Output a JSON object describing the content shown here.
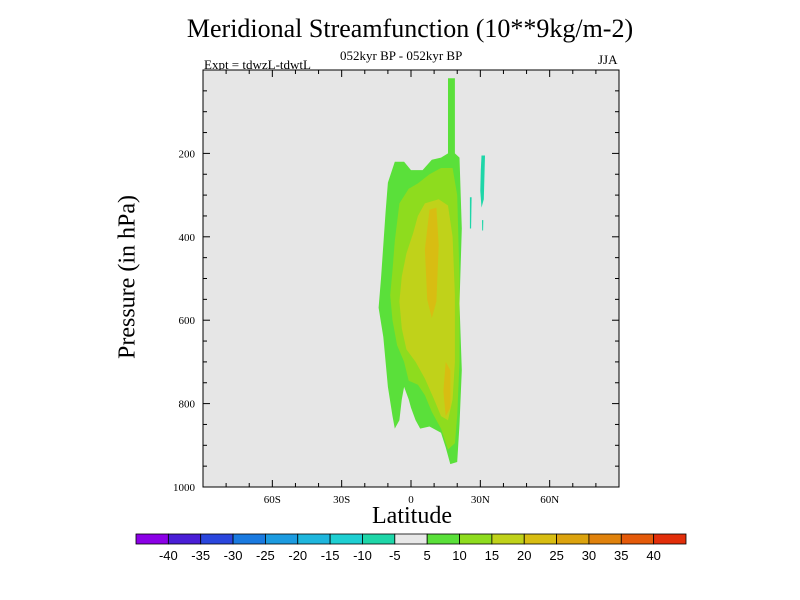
{
  "chart_data": {
    "type": "contour",
    "title": "Meridional Streamfunction (10**9kg/m-2)",
    "subtitle": "052kyr BP - 052kyr BP",
    "experiment": "Expt = tdwzL-tdwtL",
    "season": "JJA",
    "xlabel": "Latitude",
    "ylabel": "Pressure (in hPa)",
    "xlim": [
      -90,
      90
    ],
    "ylim": [
      1000,
      0
    ],
    "x_ticks": [
      {
        "value": -60,
        "label": "60S"
      },
      {
        "value": -30,
        "label": "30S"
      },
      {
        "value": 0,
        "label": "0"
      },
      {
        "value": 30,
        "label": "30N"
      },
      {
        "value": 60,
        "label": "60N"
      }
    ],
    "y_ticks": [
      {
        "value": 200,
        "label": "200"
      },
      {
        "value": 400,
        "label": "400"
      },
      {
        "value": 600,
        "label": "600"
      },
      {
        "value": 800,
        "label": "800"
      },
      {
        "value": 1000,
        "label": "1000"
      }
    ],
    "colorbar": {
      "levels": [
        "-40",
        "-35",
        "-30",
        "-25",
        "-20",
        "-15",
        "-10",
        "-5",
        "5",
        "10",
        "15",
        "20",
        "25",
        "30",
        "35",
        "40"
      ],
      "colors": [
        "#8b00e6",
        "#4a1ed6",
        "#2a46dd",
        "#1a7ae0",
        "#1c9be0",
        "#1eb6dd",
        "#1ecfd2",
        "#1ed6a8",
        "#e8e8e8",
        "#5ae03a",
        "#8edc1e",
        "#c0d21a",
        "#d8bd12",
        "#dca30e",
        "#e0820c",
        "#e45a0a",
        "#e22e0a"
      ]
    },
    "regions": [
      {
        "level": "5 to 10",
        "color": "#5ae03a",
        "polygon": [
          [
            16,
            20
          ],
          [
            19,
            20
          ],
          [
            19,
            200
          ],
          [
            21,
            210
          ],
          [
            22,
            380
          ],
          [
            21,
            560
          ],
          [
            22,
            720
          ],
          [
            21,
            850
          ],
          [
            20,
            940
          ],
          [
            17,
            945
          ],
          [
            15,
            905
          ],
          [
            13,
            870
          ],
          [
            8,
            855
          ],
          [
            4,
            860
          ],
          [
            2,
            840
          ],
          [
            0,
            810
          ],
          [
            -1,
            790
          ],
          [
            -3,
            760
          ],
          [
            -4,
            790
          ],
          [
            -5,
            840
          ],
          [
            -7,
            860
          ],
          [
            -8,
            830
          ],
          [
            -10,
            760
          ],
          [
            -12,
            640
          ],
          [
            -14,
            570
          ],
          [
            -13,
            500
          ],
          [
            -12,
            420
          ],
          [
            -11,
            340
          ],
          [
            -10,
            270
          ],
          [
            -7,
            220
          ],
          [
            -3,
            220
          ],
          [
            0,
            240
          ],
          [
            5,
            240
          ],
          [
            9,
            215
          ],
          [
            13,
            210
          ],
          [
            16,
            200
          ]
        ]
      },
      {
        "level": "10 to 15",
        "color": "#8edc1e",
        "polygon": [
          [
            8,
            250
          ],
          [
            13,
            235
          ],
          [
            18,
            235
          ],
          [
            20,
            300
          ],
          [
            21,
            500
          ],
          [
            21,
            700
          ],
          [
            20,
            830
          ],
          [
            19,
            895
          ],
          [
            16,
            910
          ],
          [
            13,
            860
          ],
          [
            9,
            820
          ],
          [
            6,
            780
          ],
          [
            3,
            755
          ],
          [
            -1,
            745
          ],
          [
            -3,
            700
          ],
          [
            -6,
            660
          ],
          [
            -8,
            600
          ],
          [
            -9,
            540
          ],
          [
            -8,
            480
          ],
          [
            -7,
            410
          ],
          [
            -5,
            320
          ],
          [
            -1,
            285
          ],
          [
            3,
            272
          ]
        ]
      },
      {
        "level": "15 to 20",
        "color": "#c0d21a",
        "polygon": [
          [
            6,
            320
          ],
          [
            12,
            310
          ],
          [
            16,
            325
          ],
          [
            18,
            400
          ],
          [
            19,
            540
          ],
          [
            19,
            700
          ],
          [
            18,
            790
          ],
          [
            16,
            840
          ],
          [
            13,
            830
          ],
          [
            10,
            790
          ],
          [
            6,
            740
          ],
          [
            2,
            700
          ],
          [
            -2,
            670
          ],
          [
            -4,
            620
          ],
          [
            -5,
            555
          ],
          [
            -4,
            495
          ],
          [
            -2,
            440
          ],
          [
            1,
            390
          ],
          [
            3,
            350
          ]
        ]
      },
      {
        "level": "20 to 25",
        "color": "#d8bd12",
        "polygon": [
          [
            8,
            335
          ],
          [
            11,
            330
          ],
          [
            12,
            420
          ],
          [
            11,
            555
          ],
          [
            9,
            595
          ],
          [
            7,
            550
          ],
          [
            6,
            430
          ]
        ]
      },
      {
        "level": "20 to 25",
        "color": "#d8bd12",
        "polygon": [
          [
            15,
            700
          ],
          [
            17,
            720
          ],
          [
            17,
            810
          ],
          [
            15,
            830
          ],
          [
            14,
            770
          ]
        ]
      },
      {
        "level": "-10 to -5",
        "color": "#1ed6a8",
        "polygon": [
          [
            30.5,
            205
          ],
          [
            32,
            205
          ],
          [
            31.5,
            310
          ],
          [
            30.5,
            330
          ],
          [
            30,
            290
          ],
          [
            30.2,
            240
          ]
        ]
      },
      {
        "level": "-10 to -5",
        "color": "#1ed6a8",
        "polygon": [
          [
            25.5,
            305
          ],
          [
            26.2,
            305
          ],
          [
            26,
            380
          ],
          [
            25.5,
            380
          ]
        ]
      },
      {
        "level": "-10 to -5",
        "color": "#1ed6a8",
        "polygon": [
          [
            30.7,
            360
          ],
          [
            31.3,
            360
          ],
          [
            31.2,
            385
          ],
          [
            30.8,
            385
          ]
        ]
      }
    ]
  }
}
